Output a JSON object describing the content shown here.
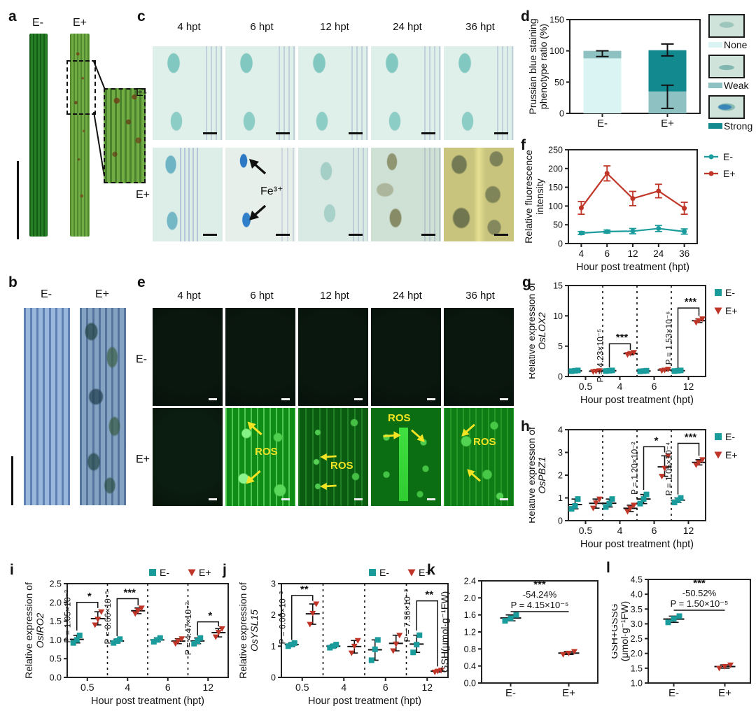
{
  "panels": {
    "a": "a",
    "b": "b",
    "c": "c",
    "d": "d",
    "e": "e",
    "f": "f",
    "g": "g",
    "h": "h",
    "i": "i",
    "j": "j",
    "k": "k",
    "l": "l"
  },
  "colors": {
    "teal": "#1b9c9c",
    "red": "#bf3629",
    "none": "#d9f4f2",
    "weak": "#8ec1c1",
    "strong": "#11898f"
  },
  "panel_a": {
    "labels": [
      "E-",
      "E+"
    ]
  },
  "panel_b": {
    "labels": [
      "E-",
      "E+"
    ]
  },
  "panel_c": {
    "times": [
      "4 hpt",
      "6 hpt",
      "12 hpt",
      "24 hpt",
      "36 hpt"
    ],
    "rows": [
      "E-",
      "E+"
    ],
    "fe_label": "Fe³⁺"
  },
  "panel_e": {
    "times": [
      "4 hpt",
      "6 hpt",
      "12 hpt",
      "24 hpt",
      "36 hpt"
    ],
    "rows": [
      "E-",
      "E+"
    ],
    "ros_label": "ROS"
  },
  "chart_data": [
    {
      "id": "d",
      "type": "bar",
      "stacked": true,
      "ylabel_lines": [
        "Prussian blue staining",
        "phenotype ratio (%)"
      ],
      "categories": [
        "E-",
        "E+"
      ],
      "series": [
        {
          "name": "None",
          "color": "none",
          "values": [
            88,
            0
          ]
        },
        {
          "name": "Weak",
          "color": "weak",
          "values": [
            12,
            35
          ]
        },
        {
          "name": "Strong",
          "color": "strong",
          "values": [
            0,
            66
          ]
        }
      ],
      "error_bars": {
        "E-": [
          [
            91,
            100
          ]
        ],
        "E+": [
          [
            8,
            45
          ],
          [
            92,
            111
          ]
        ]
      },
      "ylim": [
        0,
        150
      ],
      "yticks": [
        "0",
        "50",
        "100",
        "150"
      ],
      "legend": [
        "None",
        "Weak",
        "Strong"
      ],
      "legend_position": "right"
    },
    {
      "id": "f",
      "type": "line",
      "ylabel_lines": [
        "Relative fluorescence",
        "intensity"
      ],
      "xlabel": "Hour post treatment (hpt)",
      "categories": [
        "4",
        "6",
        "12",
        "24",
        "36"
      ],
      "series": [
        {
          "name": "E-",
          "color": "teal",
          "values": [
            28,
            32,
            33,
            40,
            32
          ],
          "errors": [
            4,
            4,
            7,
            8,
            7
          ]
        },
        {
          "name": "E+",
          "color": "red",
          "values": [
            95,
            187,
            120,
            140,
            94
          ],
          "errors": [
            17,
            20,
            19,
            18,
            16
          ]
        }
      ],
      "ylim": [
        0,
        250
      ],
      "yticks": [
        "0",
        "50",
        "100",
        "150",
        "200",
        "250"
      ],
      "legend": [
        "E-",
        "E+"
      ],
      "legend_position": "right"
    },
    {
      "id": "g",
      "type": "scatter-groups",
      "ylabel_lines": [
        "Relative expression of",
        "OsLOX2"
      ],
      "ylabel_italic": true,
      "xlabel": "Hour post treatment (hpt)",
      "categories": [
        "0.5",
        "4",
        "6",
        "12"
      ],
      "series": [
        {
          "name": "E-",
          "marker": "square",
          "color": "teal",
          "points": [
            [
              0.88,
              0.95,
              1.0
            ],
            [
              0.9,
              0.95,
              1.0
            ],
            [
              0.85,
              0.9,
              0.95
            ],
            [
              0.9,
              0.95,
              1.0
            ]
          ]
        },
        {
          "name": "E+",
          "marker": "triangle",
          "color": "red",
          "points": [
            [
              0.8,
              0.87,
              0.95
            ],
            [
              3.6,
              3.8,
              3.95
            ],
            [
              0.95,
              1.05,
              1.2
            ],
            [
              8.9,
              9.2,
              9.5
            ]
          ]
        }
      ],
      "ylim": [
        0,
        15
      ],
      "yticks": [
        "0",
        "5",
        "10",
        "15"
      ],
      "significance": [
        {
          "group": "4",
          "p": "P = 4.23×10⁻⁵",
          "stars": "***",
          "y_base": 1.5,
          "y_top": 5.4,
          "y_right": 4.4
        },
        {
          "group": "12",
          "p": "P = 1.53×10⁻⁶",
          "stars": "***",
          "y_base": 1.4,
          "y_top": 11.3,
          "y_right": 10.0
        }
      ],
      "legend": [
        "E-",
        "E+"
      ],
      "legend_position": "right"
    },
    {
      "id": "h",
      "type": "scatter-groups",
      "ylabel_lines": [
        "Relative expression of",
        "OsPBZ1"
      ],
      "ylabel_italic": true,
      "xlabel": "Hour post treatment (hpt)",
      "categories": [
        "0.5",
        "4",
        "6",
        "12"
      ],
      "series": [
        {
          "name": "E-",
          "marker": "square",
          "color": "teal",
          "points": [
            [
              0.52,
              0.65,
              0.95
            ],
            [
              0.6,
              0.75,
              0.95
            ],
            [
              0.75,
              0.95,
              1.15
            ],
            [
              0.8,
              0.9,
              1.0
            ]
          ]
        },
        {
          "name": "E+",
          "marker": "triangle",
          "color": "red",
          "points": [
            [
              0.55,
              0.78,
              0.95
            ],
            [
              0.4,
              0.55,
              0.68
            ],
            [
              1.95,
              2.3,
              2.85
            ],
            [
              2.45,
              2.55,
              2.68
            ]
          ]
        }
      ],
      "ylim": [
        0,
        4
      ],
      "yticks": [
        "0",
        "1",
        "2",
        "3",
        "4"
      ],
      "significance": [
        {
          "group": "6",
          "p": "P = 1.20×10⁻²",
          "stars": "*",
          "y_base": 1.35,
          "y_top": 3.25,
          "y_right": 3.0
        },
        {
          "group": "12",
          "p": "P = 1.05×10⁻⁴",
          "stars": "***",
          "y_base": 1.15,
          "y_top": 3.4,
          "y_right": 2.85
        }
      ],
      "legend": [
        "E-",
        "E+"
      ],
      "legend_position": "right"
    },
    {
      "id": "i",
      "type": "scatter-groups",
      "ylabel_lines": [
        "Relative expression of",
        "OsIRO2"
      ],
      "ylabel_italic": true,
      "xlabel": "Hour post treatment (hpt)",
      "categories": [
        "0.5",
        "4",
        "6",
        "12"
      ],
      "series": [
        {
          "name": "E-",
          "marker": "square",
          "color": "teal",
          "points": [
            [
              0.92,
              1.0,
              1.12
            ],
            [
              0.92,
              0.97,
              1.02
            ],
            [
              0.95,
              1.0,
              1.05
            ],
            [
              0.9,
              0.97,
              1.05
            ]
          ]
        },
        {
          "name": "E+",
          "marker": "triangle",
          "color": "red",
          "points": [
            [
              1.4,
              1.55,
              1.75
            ],
            [
              1.7,
              1.78,
              1.85
            ],
            [
              0.9,
              0.97,
              1.03
            ],
            [
              1.08,
              1.2,
              1.3
            ]
          ]
        }
      ],
      "ylim": [
        0,
        2.5
      ],
      "yticks": [
        "0.0",
        "0.5",
        "1.0",
        "1.5",
        "2.0",
        "2.5"
      ],
      "significance": [
        {
          "group": "0.5",
          "p": "P = 1.05×10⁻²",
          "stars": "*",
          "y_base": 1.25,
          "y_top": 2.0,
          "y_right": 1.85
        },
        {
          "group": "4",
          "p": "P = 8.66×10⁻⁵",
          "stars": "***",
          "y_base": 1.1,
          "y_top": 2.1,
          "y_right": 1.92
        },
        {
          "group": "12",
          "p": "P = 4.47×10⁻²",
          "stars": "*",
          "y_base": 1.12,
          "y_top": 1.48,
          "y_right": 1.36
        }
      ],
      "legend": [
        "E-",
        "E+"
      ],
      "legend_position": "top"
    },
    {
      "id": "j",
      "type": "scatter-groups",
      "ylabel_lines": [
        "Relative expression of",
        "OsYSL15"
      ],
      "ylabel_italic": true,
      "xlabel": "Hour post treatment (hpt)",
      "categories": [
        "0.5",
        "4",
        "6",
        "12"
      ],
      "series": [
        {
          "name": "E-",
          "marker": "square",
          "color": "teal",
          "points": [
            [
              1.0,
              1.05,
              1.1
            ],
            [
              0.95,
              1.0,
              1.05
            ],
            [
              0.55,
              0.9,
              1.2
            ],
            [
              0.8,
              1.05,
              1.35
            ]
          ]
        },
        {
          "name": "E+",
          "marker": "triangle",
          "color": "red",
          "points": [
            [
              1.7,
              2.05,
              2.35
            ],
            [
              0.78,
              1.0,
              1.18
            ],
            [
              0.85,
              1.07,
              1.35
            ],
            [
              0.17,
              0.2,
              0.23
            ]
          ]
        }
      ],
      "ylim": [
        0,
        3
      ],
      "yticks": [
        "0",
        "1",
        "2",
        "3"
      ],
      "significance": [
        {
          "group": "0.5",
          "p": "P = 6.00×10⁻³",
          "stars": "**",
          "y_base": 1.2,
          "y_top": 2.62,
          "y_right": 2.45
        },
        {
          "group": "12",
          "p": "P = 7.36×10⁻³",
          "stars": "**",
          "y_base": 1.5,
          "y_top": 2.45,
          "y_right": 0.35
        }
      ],
      "legend": [
        "E-",
        "E+"
      ],
      "legend_position": "top"
    },
    {
      "id": "k",
      "type": "dot-compare",
      "ylabel_lines": [
        "GSH(μmol·g⁻¹FW)"
      ],
      "categories": [
        "E-",
        "E+"
      ],
      "series": [
        {
          "name": "E-",
          "marker": "square",
          "color": "teal",
          "points": [
            1.46,
            1.52,
            1.6
          ]
        },
        {
          "name": "E+",
          "marker": "triangle",
          "color": "red",
          "points": [
            0.67,
            0.7,
            0.74
          ]
        }
      ],
      "ylim": [
        0,
        2.4
      ],
      "yticks": [
        "0.0",
        "0.4",
        "0.8",
        "1.2",
        "1.6",
        "2.0",
        "2.4"
      ],
      "annotation": {
        "stars": "***",
        "percent": "-54.24%",
        "p": "P = 4.15×10⁻⁵"
      }
    },
    {
      "id": "l",
      "type": "dot-compare",
      "ylabel_lines": [
        "GSH+GSSG",
        "(μmol·g⁻¹FW)"
      ],
      "categories": [
        "E-",
        "E+"
      ],
      "series": [
        {
          "name": "E-",
          "marker": "square",
          "color": "teal",
          "points": [
            3.05,
            3.17,
            3.26
          ]
        },
        {
          "name": "E+",
          "marker": "triangle",
          "color": "red",
          "points": [
            1.5,
            1.56,
            1.61
          ]
        }
      ],
      "ylim": [
        1.0,
        4.5
      ],
      "yticks": [
        "1.0",
        "1.5",
        "2.0",
        "2.5",
        "3.0",
        "3.5",
        "4.0",
        "4.5"
      ],
      "annotation": {
        "stars": "***",
        "percent": "-50.52%",
        "p": "P = 1.50×10⁻⁵"
      }
    }
  ]
}
